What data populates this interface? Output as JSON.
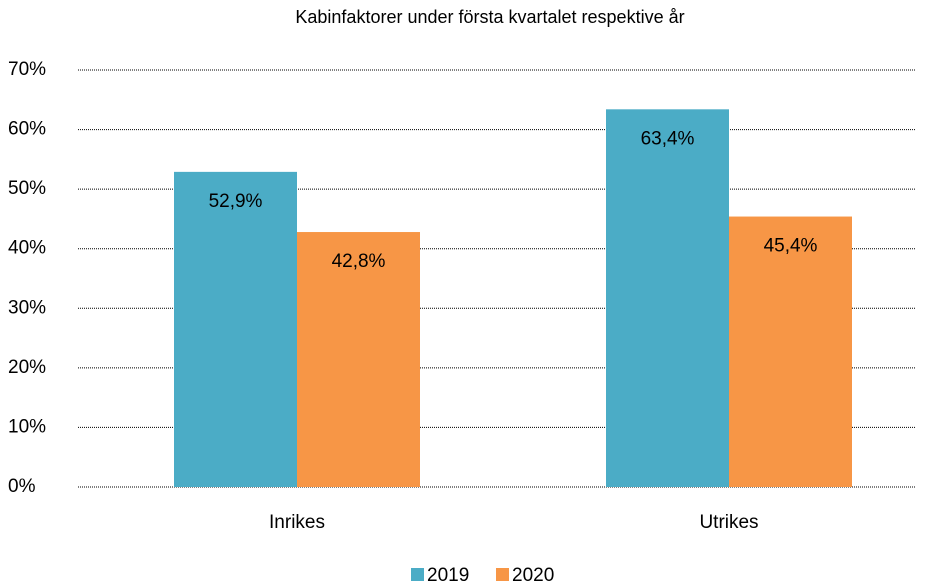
{
  "chart_data": {
    "type": "bar",
    "title": "Kabinfaktorer under första kvartalet respektive år",
    "categories": [
      "Inrikes",
      "Utrikes"
    ],
    "series": [
      {
        "name": "2019",
        "color": "#4bacc6",
        "values": [
          52.9,
          63.4
        ],
        "value_labels": [
          "52,9%",
          "63,4%"
        ]
      },
      {
        "name": "2020",
        "color": "#f79646",
        "values": [
          42.8,
          45.4
        ],
        "value_labels": [
          "42,8%",
          "45,4%"
        ]
      }
    ],
    "ylim": [
      0,
      70
    ],
    "yticks": [
      {
        "value": 0,
        "label": "0%"
      },
      {
        "value": 10,
        "label": "10%"
      },
      {
        "value": 20,
        "label": "20%"
      },
      {
        "value": 30,
        "label": "30%"
      },
      {
        "value": 40,
        "label": "40%"
      },
      {
        "value": 50,
        "label": "50%"
      },
      {
        "value": 60,
        "label": "60%"
      },
      {
        "value": 70,
        "label": "70%"
      }
    ],
    "grid": true,
    "legend": "bottom"
  }
}
